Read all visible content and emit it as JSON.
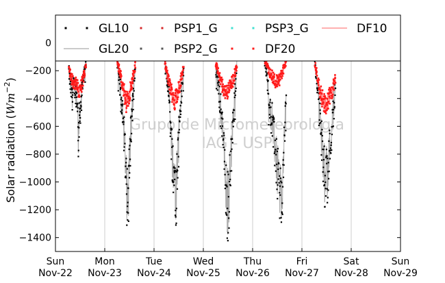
{
  "chart_data": {
    "type": "scatter",
    "ylabel": "Solar radiation ($Wm^{-2}$)",
    "ylim": [
      -1500,
      200
    ],
    "yticks": [
      0,
      -200,
      -400,
      -600,
      -800,
      -1000,
      -1200,
      -1400
    ],
    "xlim": [
      0,
      7
    ],
    "xtick_values": [
      0,
      1,
      2,
      3,
      4,
      5,
      6,
      7
    ],
    "xtick_labels": [
      [
        "Sun",
        "Nov-22"
      ],
      [
        "Mon",
        "Nov-23"
      ],
      [
        "Tue",
        "Nov-24"
      ],
      [
        "Wed",
        "Nov-25"
      ],
      [
        "Thu",
        "Nov-26"
      ],
      [
        "Fri",
        "Nov-27"
      ],
      [
        "Sat",
        "Nov-28"
      ],
      [
        "Sun",
        "Nov-29"
      ]
    ],
    "grid": "vertical",
    "watermark": [
      "Grupo de Micrometeorologia",
      "IAG - USP"
    ],
    "legend_position": "top",
    "series": [
      {
        "name": "GL10",
        "style": "dots",
        "color": "#000000"
      },
      {
        "name": "GL20",
        "style": "line",
        "color": "#aaaaaa"
      },
      {
        "name": "PSP1_G",
        "style": "dots",
        "color": "#d62728"
      },
      {
        "name": "PSP2_G",
        "style": "dots",
        "color": "#555555"
      },
      {
        "name": "PSP3_G",
        "style": "dots",
        "color": "#40e0d0"
      },
      {
        "name": "DF20",
        "style": "dots",
        "color": "#ff1a1a"
      },
      {
        "name": "DF10",
        "style": "line",
        "color": "#ff8080"
      }
    ],
    "days": [
      {
        "start": 0.27,
        "end": 0.62,
        "global_profile": [
          [
            0,
            -200
          ],
          [
            0.1,
            -320
          ],
          [
            0.2,
            -380
          ],
          [
            0.3,
            -300
          ],
          [
            0.4,
            -360
          ],
          [
            0.5,
            -420
          ],
          [
            0.55,
            -700
          ],
          [
            0.6,
            -560
          ],
          [
            0.7,
            -440
          ],
          [
            0.8,
            -300
          ],
          [
            0.9,
            -200
          ],
          [
            1,
            -130
          ]
        ],
        "diffuse_profile": [
          [
            0,
            -180
          ],
          [
            0.15,
            -260
          ],
          [
            0.3,
            -280
          ],
          [
            0.5,
            -320
          ],
          [
            0.6,
            -360
          ],
          [
            0.75,
            -300
          ],
          [
            0.9,
            -220
          ],
          [
            1,
            -150
          ]
        ]
      },
      {
        "start": 1.25,
        "end": 1.62,
        "global_profile": [
          [
            0,
            -150
          ],
          [
            0.1,
            -240
          ],
          [
            0.2,
            -380
          ],
          [
            0.3,
            -470
          ],
          [
            0.4,
            -640
          ],
          [
            0.5,
            -1050
          ],
          [
            0.6,
            -1150
          ],
          [
            0.7,
            -820
          ],
          [
            0.8,
            -560
          ],
          [
            0.9,
            -360
          ],
          [
            1,
            -150
          ]
        ],
        "diffuse_profile": [
          [
            0,
            -140
          ],
          [
            0.2,
            -230
          ],
          [
            0.35,
            -330
          ],
          [
            0.5,
            -440
          ],
          [
            0.6,
            -400
          ],
          [
            0.8,
            -300
          ],
          [
            1,
            -160
          ]
        ]
      },
      {
        "start": 2.22,
        "end": 2.6,
        "global_profile": [
          [
            0,
            -160
          ],
          [
            0.1,
            -260
          ],
          [
            0.2,
            -320
          ],
          [
            0.3,
            -600
          ],
          [
            0.4,
            -820
          ],
          [
            0.5,
            -960
          ],
          [
            0.6,
            -1100
          ],
          [
            0.7,
            -750
          ],
          [
            0.8,
            -520
          ],
          [
            0.9,
            -350
          ],
          [
            1,
            -170
          ]
        ],
        "diffuse_profile": [
          [
            0,
            -150
          ],
          [
            0.2,
            -280
          ],
          [
            0.4,
            -370
          ],
          [
            0.5,
            -420
          ],
          [
            0.6,
            -380
          ],
          [
            0.8,
            -300
          ],
          [
            1,
            -160
          ]
        ]
      },
      {
        "start": 3.25,
        "end": 3.68,
        "global_profile": [
          [
            0,
            -180
          ],
          [
            0.1,
            -300
          ],
          [
            0.2,
            -420
          ],
          [
            0.3,
            -560
          ],
          [
            0.4,
            -850
          ],
          [
            0.5,
            -1050
          ],
          [
            0.6,
            -1200
          ],
          [
            0.7,
            -900
          ],
          [
            0.8,
            -620
          ],
          [
            0.9,
            -380
          ],
          [
            1,
            -150
          ]
        ],
        "diffuse_profile": [
          [
            0,
            -150
          ],
          [
            0.2,
            -260
          ],
          [
            0.4,
            -340
          ],
          [
            0.5,
            -360
          ],
          [
            0.6,
            -330
          ],
          [
            0.8,
            -280
          ],
          [
            1,
            -160
          ]
        ]
      },
      {
        "start": 4.24,
        "end": 4.68,
        "global_profile": [
          [
            0,
            -130
          ],
          [
            0.1,
            -220
          ],
          [
            0.2,
            -380
          ],
          [
            0.3,
            -520
          ],
          [
            0.4,
            -650
          ],
          [
            0.5,
            -800
          ],
          [
            0.6,
            -960
          ],
          [
            0.7,
            -1080
          ],
          [
            0.8,
            -1150
          ],
          [
            0.9,
            -800
          ],
          [
            1,
            -350
          ]
        ],
        "diffuse_profile": [
          [
            0,
            -120
          ],
          [
            0.2,
            -200
          ],
          [
            0.4,
            -250
          ],
          [
            0.5,
            -280
          ],
          [
            0.7,
            -260
          ],
          [
            0.85,
            -200
          ],
          [
            1,
            -140
          ]
        ]
      },
      {
        "start": 5.26,
        "end": 5.68,
        "global_profile": [
          [
            0,
            -140
          ],
          [
            0.1,
            -280
          ],
          [
            0.2,
            -420
          ],
          [
            0.3,
            -650
          ],
          [
            0.4,
            -860
          ],
          [
            0.5,
            -1000
          ],
          [
            0.6,
            -950
          ],
          [
            0.7,
            -800
          ],
          [
            0.8,
            -650
          ],
          [
            0.9,
            -500
          ],
          [
            1,
            -300
          ]
        ],
        "diffuse_profile": [
          [
            0,
            -150
          ],
          [
            0.2,
            -300
          ],
          [
            0.4,
            -420
          ],
          [
            0.5,
            -450
          ],
          [
            0.6,
            -420
          ],
          [
            0.8,
            -360
          ],
          [
            1,
            -250
          ]
        ]
      }
    ]
  }
}
